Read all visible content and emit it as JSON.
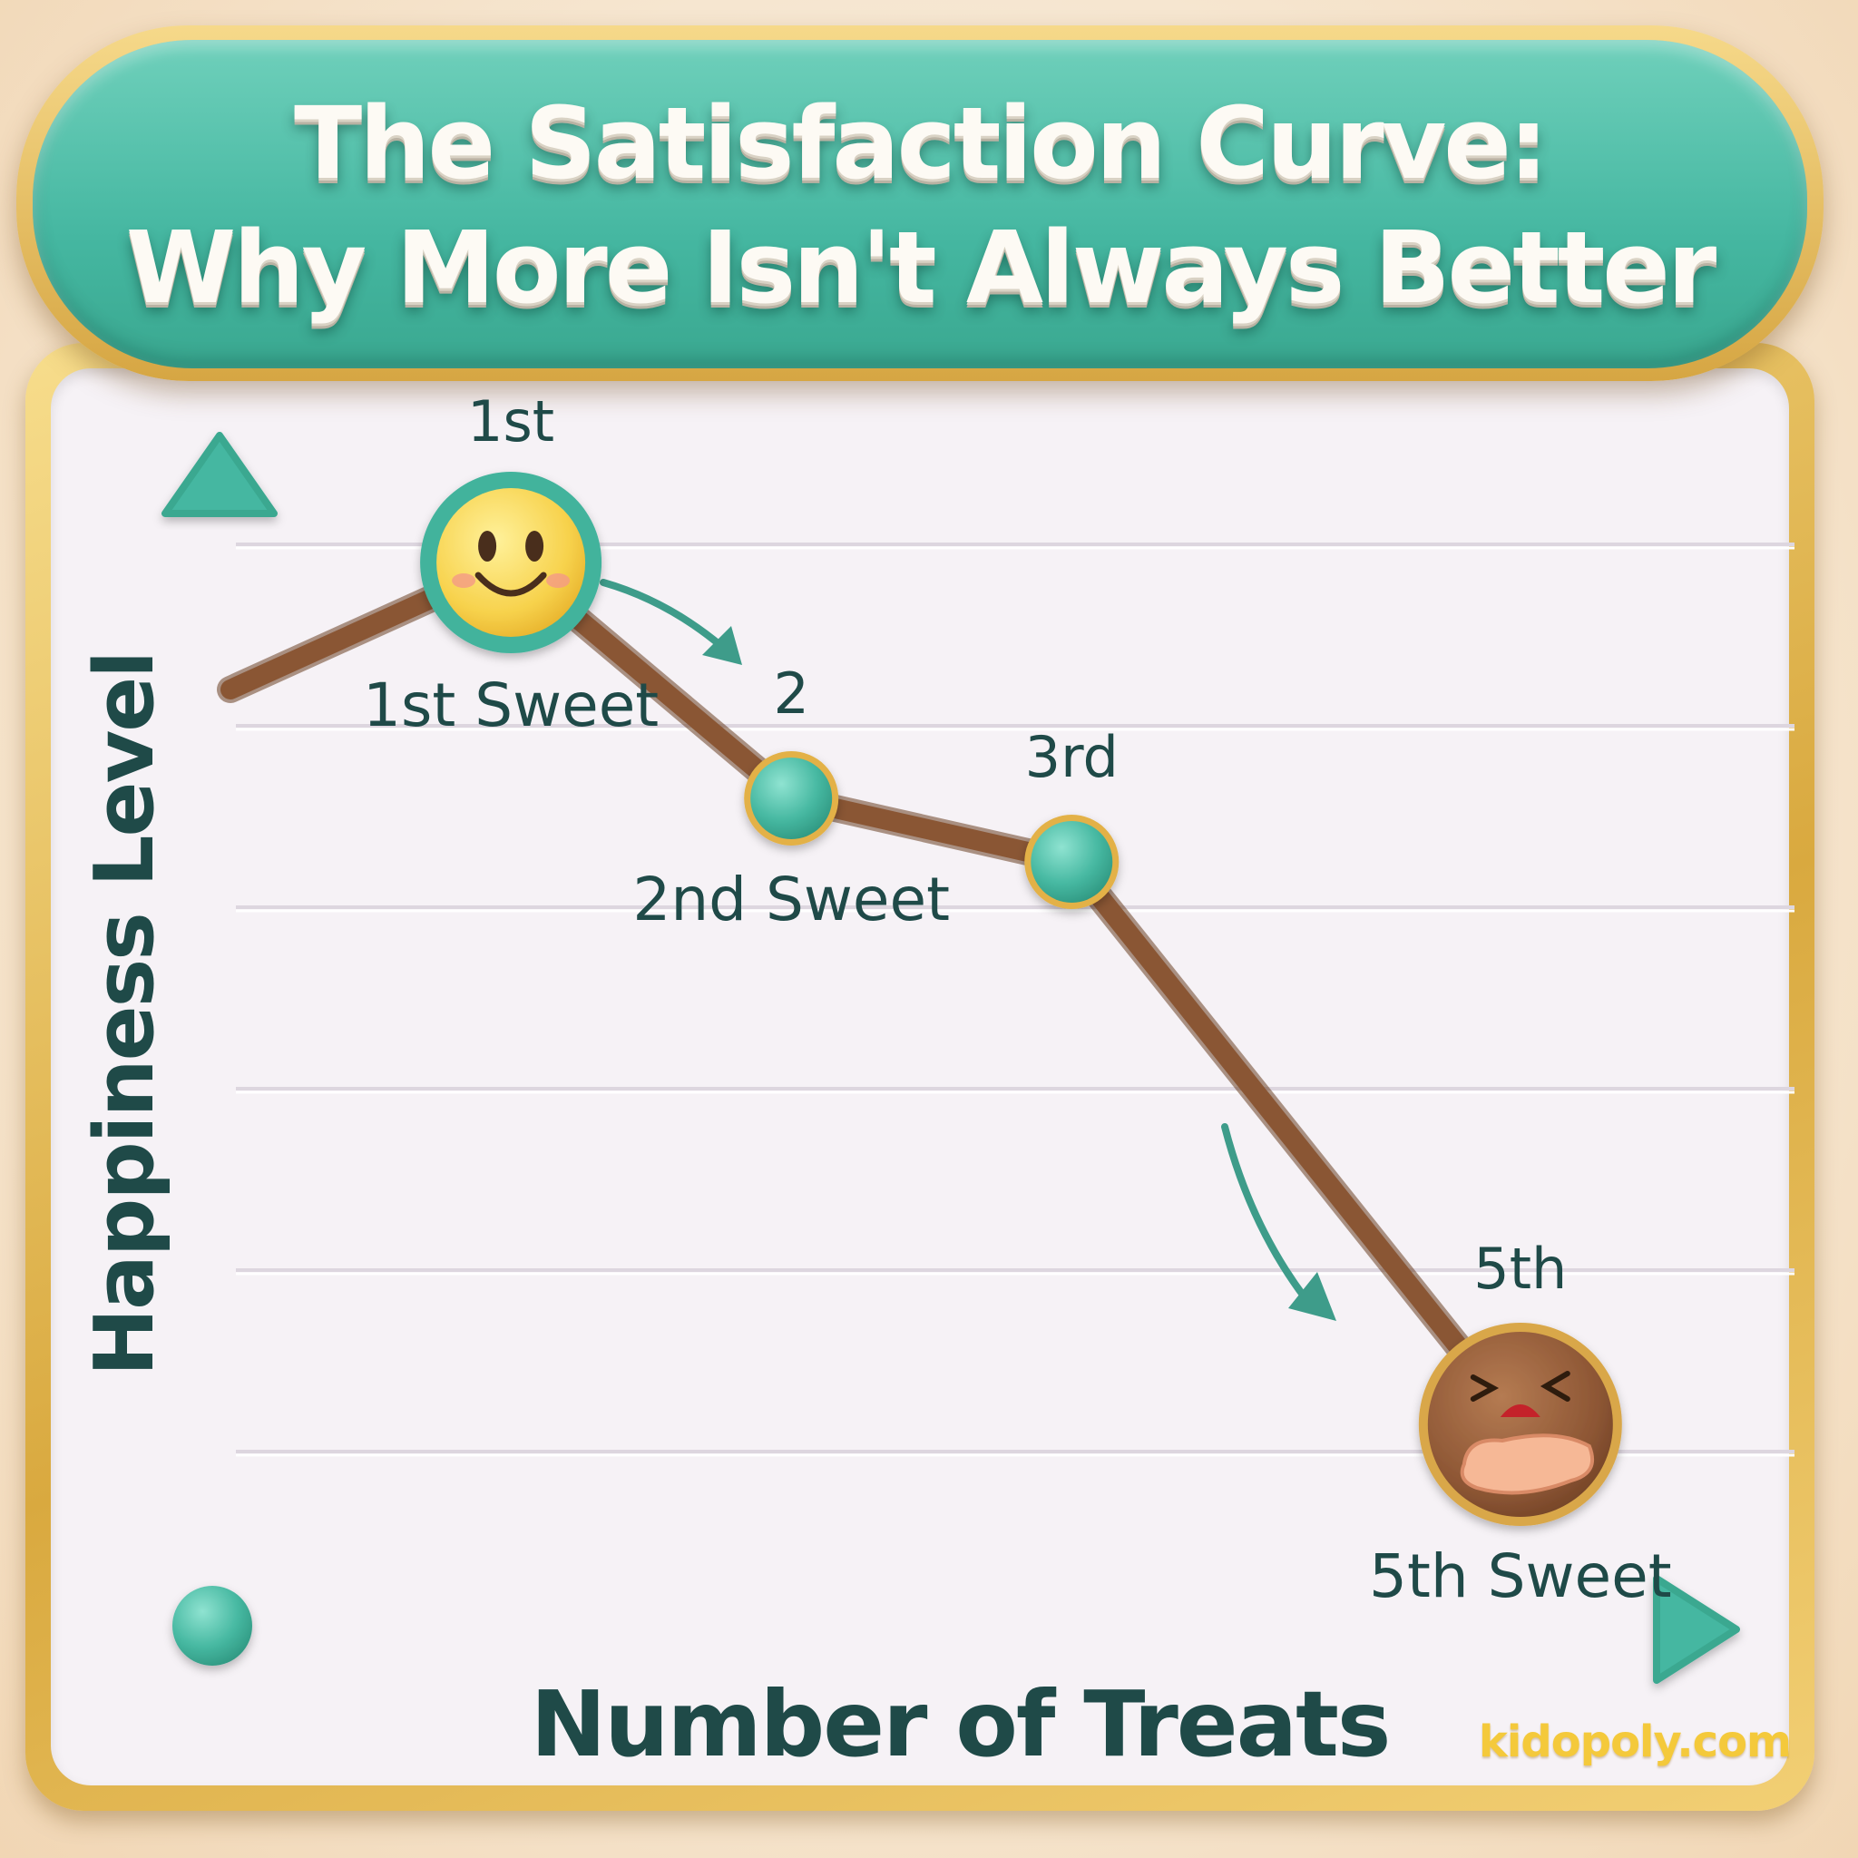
{
  "title_line1": "The Satisfaction Curve:",
  "title_line2": "Why More Isn't Always Better",
  "watermark": "kidopoly.com",
  "colors": {
    "teal": "#45b7a1",
    "brown": "#8a5634",
    "gold": "#e2b24c",
    "text": "#1f4a48"
  },
  "chart_data": {
    "type": "line",
    "ylabel": "Happiness Level",
    "xlabel": "Number of Treats",
    "grid": true,
    "xlim": [
      0,
      5.5
    ],
    "ylim": [
      0,
      7
    ],
    "series": [
      {
        "values": [
          {
            "x": 0,
            "y": 5.2
          },
          {
            "x": 1,
            "y": 5.9
          },
          {
            "x": 2,
            "y": 4.6
          },
          {
            "x": 3,
            "y": 4.25
          },
          {
            "x": 4.6,
            "y": 1.15
          }
        ]
      }
    ],
    "points": [
      {
        "x": 1,
        "y": 5.9,
        "top_label": "1st",
        "bottom_label": "1st Sweet",
        "marker": "smiley-face-icon"
      },
      {
        "x": 2,
        "y": 4.6,
        "top_label": "2",
        "bottom_label": "2nd Sweet",
        "marker": "dot"
      },
      {
        "x": 3,
        "y": 4.25,
        "top_label": "3rd",
        "bottom_label": "",
        "marker": "dot"
      },
      {
        "x": 4.6,
        "y": 1.15,
        "top_label": "5th",
        "bottom_label": "5th Sweet",
        "marker": "sick-face-icon"
      }
    ]
  }
}
